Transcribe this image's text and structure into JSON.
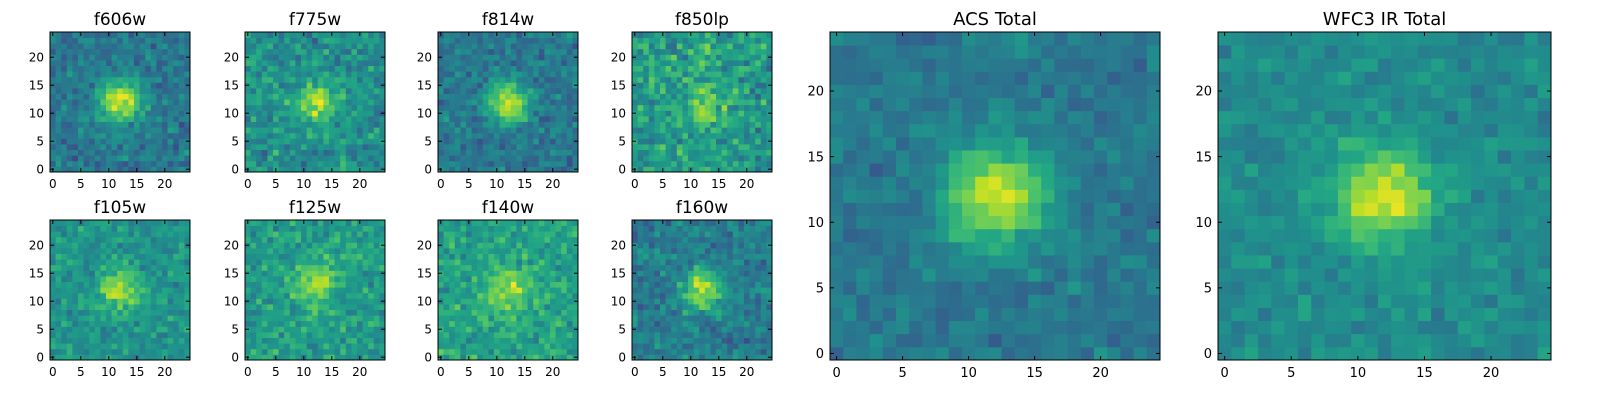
{
  "chart_data": [
    {
      "type": "heatmap",
      "title": "f606w",
      "colormap": "viridis",
      "grid_size": 25,
      "xlim": [
        -0.5,
        24.5
      ],
      "ylim": [
        -0.5,
        24.5
      ],
      "xticks": [
        0,
        5,
        10,
        15,
        20
      ],
      "yticks": [
        0,
        5,
        10,
        15,
        20
      ],
      "peak": {
        "x": 12,
        "y": 12
      },
      "source_strength": 0.55,
      "noise_level": 0.2,
      "background": 0.4
    },
    {
      "type": "heatmap",
      "title": "f775w",
      "colormap": "viridis",
      "grid_size": 25,
      "xlim": [
        -0.5,
        24.5
      ],
      "ylim": [
        -0.5,
        24.5
      ],
      "xticks": [
        0,
        5,
        10,
        15,
        20
      ],
      "yticks": [
        0,
        5,
        10,
        15,
        20
      ],
      "peak": {
        "x": 12,
        "y": 12
      },
      "source_strength": 0.35,
      "noise_level": 0.24,
      "background": 0.5
    },
    {
      "type": "heatmap",
      "title": "f814w",
      "colormap": "viridis",
      "grid_size": 25,
      "xlim": [
        -0.5,
        24.5
      ],
      "ylim": [
        -0.5,
        24.5
      ],
      "xticks": [
        0,
        5,
        10,
        15,
        20
      ],
      "yticks": [
        0,
        5,
        10,
        15,
        20
      ],
      "peak": {
        "x": 12,
        "y": 12
      },
      "source_strength": 0.5,
      "noise_level": 0.2,
      "background": 0.4
    },
    {
      "type": "heatmap",
      "title": "f850lp",
      "colormap": "viridis",
      "grid_size": 25,
      "xlim": [
        -0.5,
        24.5
      ],
      "ylim": [
        -0.5,
        24.5
      ],
      "xticks": [
        0,
        5,
        10,
        15,
        20
      ],
      "yticks": [
        0,
        5,
        10,
        15,
        20
      ],
      "peak": {
        "x": 12,
        "y": 12
      },
      "source_strength": 0.25,
      "noise_level": 0.3,
      "background": 0.55
    },
    {
      "type": "heatmap",
      "title": "f105w",
      "colormap": "viridis",
      "grid_size": 25,
      "xlim": [
        -0.5,
        24.5
      ],
      "ylim": [
        -0.5,
        24.5
      ],
      "xticks": [
        0,
        5,
        10,
        15,
        20
      ],
      "yticks": [
        0,
        5,
        10,
        15,
        20
      ],
      "peak": {
        "x": 12,
        "y": 12
      },
      "source_strength": 0.35,
      "noise_level": 0.2,
      "background": 0.52
    },
    {
      "type": "heatmap",
      "title": "f125w",
      "colormap": "viridis",
      "grid_size": 25,
      "xlim": [
        -0.5,
        24.5
      ],
      "ylim": [
        -0.5,
        24.5
      ],
      "xticks": [
        0,
        5,
        10,
        15,
        20
      ],
      "yticks": [
        0,
        5,
        10,
        15,
        20
      ],
      "peak": {
        "x": 12,
        "y": 13
      },
      "source_strength": 0.3,
      "noise_level": 0.22,
      "background": 0.55
    },
    {
      "type": "heatmap",
      "title": "f140w",
      "colormap": "viridis",
      "grid_size": 25,
      "xlim": [
        -0.5,
        24.5
      ],
      "ylim": [
        -0.5,
        24.5
      ],
      "xticks": [
        0,
        5,
        10,
        15,
        20
      ],
      "yticks": [
        0,
        5,
        10,
        15,
        20
      ],
      "peak": {
        "x": 12,
        "y": 12
      },
      "source_strength": 0.28,
      "noise_level": 0.22,
      "background": 0.58
    },
    {
      "type": "heatmap",
      "title": "f160w",
      "colormap": "viridis",
      "grid_size": 25,
      "xlim": [
        -0.5,
        24.5
      ],
      "ylim": [
        -0.5,
        24.5
      ],
      "xticks": [
        0,
        5,
        10,
        15,
        20
      ],
      "yticks": [
        0,
        5,
        10,
        15,
        20
      ],
      "peak": {
        "x": 12,
        "y": 12
      },
      "source_strength": 0.45,
      "noise_level": 0.2,
      "background": 0.42
    },
    {
      "type": "heatmap",
      "title": "ACS Total",
      "colormap": "viridis",
      "grid_size": 25,
      "xlim": [
        -0.5,
        24.5
      ],
      "ylim": [
        -0.5,
        24.5
      ],
      "xticks": [
        0,
        5,
        10,
        15,
        20
      ],
      "yticks": [
        0,
        5,
        10,
        15,
        20
      ],
      "peak": {
        "x": 12,
        "y": 12
      },
      "source_strength": 0.55,
      "noise_level": 0.14,
      "background": 0.4
    },
    {
      "type": "heatmap",
      "title": "WFC3 IR Total",
      "colormap": "viridis",
      "grid_size": 25,
      "xlim": [
        -0.5,
        24.5
      ],
      "ylim": [
        -0.5,
        24.5
      ],
      "xticks": [
        0,
        5,
        10,
        15,
        20
      ],
      "yticks": [
        0,
        5,
        10,
        15,
        20
      ],
      "peak": {
        "x": 12,
        "y": 12
      },
      "source_strength": 0.45,
      "noise_level": 0.14,
      "background": 0.48
    }
  ]
}
